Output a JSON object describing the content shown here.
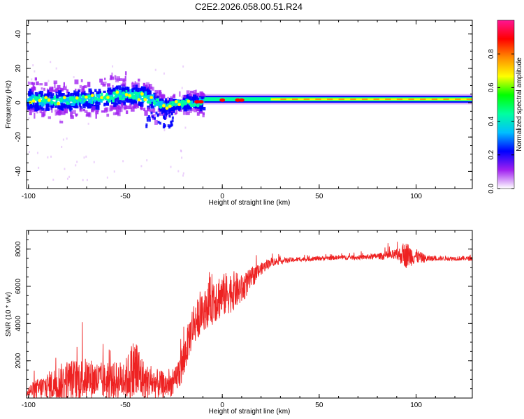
{
  "title": "C2E2.2026.058.00.51.R24",
  "chart_data": [
    {
      "type": "heatmap",
      "xlabel": "Height of straight line (km)",
      "ylabel": "Frequency (Hz)",
      "xlim": [
        -101,
        129
      ],
      "ylim": [
        -50,
        48
      ],
      "xticks": [
        -100,
        -50,
        0,
        50,
        100
      ],
      "yticks": [
        -40,
        -20,
        0,
        20,
        40
      ],
      "colorbar": {
        "label": "Normalized spectral amplitude",
        "range": [
          0,
          1
        ],
        "ticks": [
          "0.0",
          "0.2",
          "0.4",
          "0.6",
          "0.8"
        ],
        "colormap": [
          "#ffffff",
          "#a020f0",
          "#0000ff",
          "#00bfff",
          "#00ffa0",
          "#00ff00",
          "#ffff00",
          "#ff8c00",
          "#ff0000",
          "#ff1493"
        ]
      },
      "ridge": {
        "x": [
          -100,
          -90,
          -80,
          -70,
          -60,
          -50,
          -40,
          -30,
          -20,
          -12,
          0,
          10,
          20,
          30,
          40,
          50,
          60,
          80,
          100,
          129
        ],
        "y": [
          2,
          1,
          1,
          2,
          3,
          5,
          3,
          -2,
          0,
          0,
          1,
          1,
          1,
          1,
          2,
          2,
          2,
          2,
          2,
          2
        ]
      }
    },
    {
      "type": "line",
      "xlabel": "Height of straight line (km)",
      "ylabel": "SNR (10 * v/v)",
      "xlim": [
        -101,
        129
      ],
      "ylim": [
        0,
        9000
      ],
      "xticks": [
        -100,
        -50,
        0,
        50,
        100
      ],
      "yticks": [
        2000,
        4000,
        6000,
        8000
      ],
      "line_color": "#ee2222",
      "envelope": {
        "x": [
          -101,
          -90,
          -80,
          -70,
          -60,
          -50,
          -45,
          -40,
          -30,
          -25,
          -20,
          -18,
          -15,
          -10,
          -5,
          0,
          5,
          10,
          15,
          20,
          25,
          30,
          40,
          50,
          60,
          70,
          80,
          90,
          95,
          100,
          105,
          110,
          120,
          129
        ],
        "base": [
          200,
          300,
          500,
          600,
          500,
          600,
          700,
          500,
          400,
          500,
          1500,
          2500,
          3500,
          4200,
          4800,
          5000,
          5300,
          5500,
          6200,
          6800,
          7200,
          7300,
          7400,
          7450,
          7500,
          7500,
          7550,
          7550,
          7400,
          7450,
          7400,
          7450,
          7450,
          7450
        ],
        "noise": [
          400,
          1000,
          1400,
          1400,
          1200,
          1300,
          2500,
          1200,
          900,
          800,
          1500,
          1200,
          1500,
          1200,
          1800,
          1500,
          1400,
          1000,
          700,
          400,
          300,
          200,
          150,
          150,
          150,
          150,
          200,
          400,
          900,
          500,
          250,
          150,
          150,
          150
        ]
      }
    }
  ]
}
